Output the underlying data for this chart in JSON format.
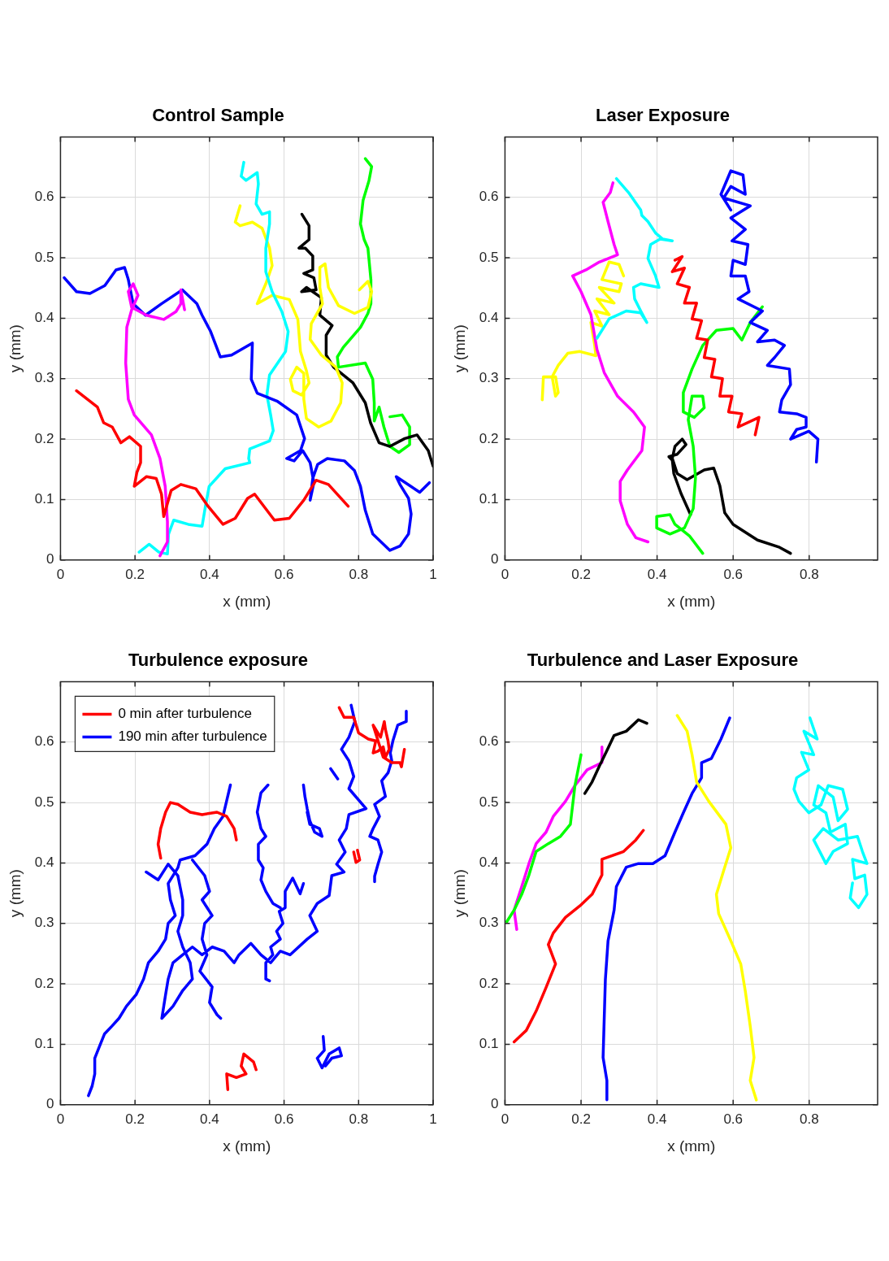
{
  "chart_data": [
    {
      "type": "line",
      "title": "Control Sample",
      "xlabel": "x (mm)",
      "ylabel": "y (mm)",
      "xlim": [
        0,
        1
      ],
      "ylim": [
        0,
        0.7
      ],
      "xticks": [
        0,
        0.2,
        0.4,
        0.6,
        0.8,
        1
      ],
      "yticks": [
        0,
        0.1,
        0.2,
        0.3,
        0.4,
        0.5,
        0.6
      ],
      "grid": true,
      "series": [
        {
          "color": "#ff0000",
          "x": [
            0.043,
            0.099,
            0.116,
            0.139,
            0.162,
            0.185,
            0.215,
            0.215,
            0.205,
            0.198,
            0.231,
            0.257,
            0.271,
            0.277,
            0.297,
            0.323,
            0.363,
            0.396,
            0.436,
            0.469,
            0.502,
            0.521,
            0.574,
            0.614,
            0.653,
            0.686,
            0.719,
            0.772
          ],
          "values": [
            0.28,
            0.253,
            0.227,
            0.22,
            0.194,
            0.204,
            0.188,
            0.161,
            0.145,
            0.122,
            0.138,
            0.135,
            0.109,
            0.072,
            0.115,
            0.125,
            0.118,
            0.089,
            0.059,
            0.069,
            0.102,
            0.109,
            0.066,
            0.069,
            0.099,
            0.132,
            0.125,
            0.089
          ]
        },
        {
          "color": "#ff00ff",
          "x": [
            0.267,
            0.287,
            0.287,
            0.281,
            0.267,
            0.244,
            0.198,
            0.182,
            0.175,
            0.178,
            0.191,
            0.208,
            0.195,
            0.182,
            0.191,
            0.231,
            0.277,
            0.31,
            0.323,
            0.323,
            0.333
          ],
          "values": [
            0.007,
            0.03,
            0.063,
            0.122,
            0.168,
            0.207,
            0.24,
            0.266,
            0.326,
            0.385,
            0.414,
            0.438,
            0.457,
            0.444,
            0.418,
            0.405,
            0.398,
            0.411,
            0.424,
            0.447,
            0.414
          ]
        },
        {
          "color": "#0000ff",
          "x": [
            0.01,
            0.043,
            0.079,
            0.119,
            0.149,
            0.172,
            0.182,
            0.195,
            0.228,
            0.271,
            0.327,
            0.366,
            0.38,
            0.403,
            0.429,
            0.459,
            0.515,
            0.512,
            0.528,
            0.581,
            0.634,
            0.655,
            0.644,
            0.607,
            0.627,
            0.65,
            0.67,
            0.68,
            0.67,
            0.677,
            0.69,
            0.716,
            0.762,
            0.789,
            0.805,
            0.818,
            0.838,
            0.884,
            0.911,
            0.934,
            0.941,
            0.934,
            0.911,
            0.901,
            0.964,
            0.99
          ],
          "values": [
            0.467,
            0.444,
            0.441,
            0.454,
            0.48,
            0.484,
            0.464,
            0.424,
            0.405,
            0.424,
            0.447,
            0.424,
            0.405,
            0.378,
            0.336,
            0.339,
            0.359,
            0.299,
            0.276,
            0.263,
            0.24,
            0.201,
            0.181,
            0.168,
            0.164,
            0.181,
            0.161,
            0.128,
            0.099,
            0.135,
            0.158,
            0.168,
            0.164,
            0.148,
            0.122,
            0.082,
            0.043,
            0.016,
            0.023,
            0.043,
            0.076,
            0.102,
            0.125,
            0.138,
            0.112,
            0.128
          ]
        },
        {
          "color": "#00ffff",
          "x": [
            0.492,
            0.485,
            0.498,
            0.528,
            0.531,
            0.525,
            0.541,
            0.561,
            0.561,
            0.551,
            0.551,
            0.568,
            0.594,
            0.611,
            0.604,
            0.561,
            0.554,
            0.564,
            0.571,
            0.561,
            0.508,
            0.505,
            0.508,
            0.442,
            0.399,
            0.389,
            0.38,
            0.343,
            0.304,
            0.29,
            0.287,
            0.264,
            0.238,
            0.211
          ],
          "values": [
            0.658,
            0.635,
            0.628,
            0.641,
            0.622,
            0.589,
            0.572,
            0.576,
            0.556,
            0.516,
            0.477,
            0.444,
            0.411,
            0.378,
            0.345,
            0.306,
            0.273,
            0.24,
            0.214,
            0.197,
            0.184,
            0.168,
            0.161,
            0.151,
            0.122,
            0.089,
            0.056,
            0.059,
            0.066,
            0.043,
            0.01,
            0.013,
            0.026,
            0.013
          ]
        },
        {
          "color": "#ffff00",
          "x": [
            0.482,
            0.469,
            0.482,
            0.515,
            0.541,
            0.561,
            0.568,
            0.551,
            0.528,
            0.568,
            0.614,
            0.637,
            0.644,
            0.66,
            0.667,
            0.647,
            0.624,
            0.617,
            0.634,
            0.653,
            0.653,
            0.66,
            0.693,
            0.726,
            0.752,
            0.756,
            0.739,
            0.7,
            0.67,
            0.673,
            0.703,
            0.696,
            0.696,
            0.71,
            0.719,
            0.746,
            0.789,
            0.825,
            0.835,
            0.825,
            0.802
          ],
          "values": [
            0.586,
            0.559,
            0.553,
            0.559,
            0.549,
            0.516,
            0.487,
            0.457,
            0.424,
            0.438,
            0.431,
            0.398,
            0.345,
            0.313,
            0.293,
            0.273,
            0.28,
            0.299,
            0.319,
            0.309,
            0.266,
            0.234,
            0.22,
            0.23,
            0.26,
            0.293,
            0.319,
            0.339,
            0.365,
            0.391,
            0.424,
            0.451,
            0.484,
            0.49,
            0.451,
            0.421,
            0.408,
            0.418,
            0.444,
            0.461,
            0.447
          ]
        },
        {
          "color": "#000000",
          "x": [
            0.648,
            0.667,
            0.667,
            0.64,
            0.657,
            0.677,
            0.677,
            0.653,
            0.68,
            0.686,
            0.647,
            0.66,
            0.7,
            0.696,
            0.729,
            0.713,
            0.713,
            0.733,
            0.785,
            0.818,
            0.832,
            0.855,
            0.884,
            0.924,
            0.957,
            0.987,
            1.0
          ],
          "values": [
            0.572,
            0.553,
            0.53,
            0.516,
            0.516,
            0.503,
            0.48,
            0.474,
            0.467,
            0.447,
            0.444,
            0.451,
            0.434,
            0.405,
            0.388,
            0.372,
            0.339,
            0.319,
            0.293,
            0.26,
            0.227,
            0.194,
            0.188,
            0.201,
            0.207,
            0.181,
            0.155
          ]
        },
        {
          "color": "#00ff00",
          "x": [
            0.818,
            0.835,
            0.828,
            0.812,
            0.805,
            0.815,
            0.825,
            0.833,
            0.833,
            0.825,
            0.805,
            0.759,
            0.743,
            0.746,
            0.818,
            0.838,
            0.842,
            0.842,
            0.855,
            0.868,
            0.884,
            0.908,
            0.937,
            0.937,
            0.917,
            0.884
          ],
          "values": [
            0.664,
            0.651,
            0.628,
            0.595,
            0.556,
            0.53,
            0.516,
            0.464,
            0.424,
            0.408,
            0.385,
            0.352,
            0.336,
            0.319,
            0.326,
            0.299,
            0.26,
            0.23,
            0.253,
            0.22,
            0.188,
            0.178,
            0.191,
            0.22,
            0.24,
            0.237
          ]
        }
      ]
    },
    {
      "type": "line",
      "title": "Laser Exposure",
      "xlabel": "x (mm)",
      "ylabel": "y (mm)",
      "xlim": [
        0,
        0.98
      ],
      "ylim": [
        0,
        0.7
      ],
      "xticks": [
        0,
        0.2,
        0.4,
        0.6,
        0.8
      ],
      "yticks": [
        0,
        0.1,
        0.2,
        0.3,
        0.4,
        0.5,
        0.6
      ],
      "grid": true,
      "series": [
        {
          "color": "#0000ff",
          "x": [
            0.819,
            0.823,
            0.799,
            0.751,
            0.767,
            0.792,
            0.792,
            0.767,
            0.722,
            0.728,
            0.751,
            0.748,
            0.69,
            0.709,
            0.735,
            0.709,
            0.664,
            0.69,
            0.645,
            0.677,
            0.613,
            0.642,
            0.632,
            0.594,
            0.6,
            0.632,
            0.639,
            0.597,
            0.632,
            0.594,
            0.645,
            0.575,
            0.594,
            0.632,
            0.626,
            0.594,
            0.568,
            0.594
          ],
          "values": [
            0.162,
            0.2,
            0.213,
            0.2,
            0.216,
            0.22,
            0.236,
            0.242,
            0.245,
            0.265,
            0.29,
            0.316,
            0.322,
            0.335,
            0.355,
            0.364,
            0.361,
            0.38,
            0.393,
            0.412,
            0.432,
            0.444,
            0.47,
            0.47,
            0.496,
            0.489,
            0.522,
            0.528,
            0.547,
            0.566,
            0.586,
            0.599,
            0.618,
            0.605,
            0.637,
            0.644,
            0.605,
            0.579
          ]
        },
        {
          "color": "#ff0000",
          "x": [
            0.447,
            0.466,
            0.44,
            0.472,
            0.453,
            0.485,
            0.472,
            0.504,
            0.492,
            0.517,
            0.504,
            0.533,
            0.524,
            0.552,
            0.543,
            0.572,
            0.565,
            0.597,
            0.588,
            0.623,
            0.613,
            0.668,
            0.658
          ],
          "values": [
            0.496,
            0.502,
            0.477,
            0.483,
            0.457,
            0.451,
            0.425,
            0.425,
            0.399,
            0.396,
            0.367,
            0.364,
            0.335,
            0.332,
            0.303,
            0.3,
            0.271,
            0.271,
            0.245,
            0.242,
            0.22,
            0.236,
            0.207
          ]
        },
        {
          "color": "#00ff00",
          "x": [
            0.677,
            0.645,
            0.623,
            0.6,
            0.556,
            0.52,
            0.492,
            0.469,
            0.469,
            0.498,
            0.524,
            0.52,
            0.492,
            0.482,
            0.495,
            0.501,
            0.495,
            0.472,
            0.434,
            0.399,
            0.399,
            0.434,
            0.447,
            0.485,
            0.52
          ],
          "values": [
            0.419,
            0.393,
            0.364,
            0.383,
            0.38,
            0.355,
            0.316,
            0.277,
            0.245,
            0.236,
            0.252,
            0.271,
            0.271,
            0.232,
            0.188,
            0.136,
            0.085,
            0.053,
            0.043,
            0.053,
            0.072,
            0.075,
            0.059,
            0.04,
            0.011
          ]
        },
        {
          "color": "#000000",
          "x": [
            0.751,
            0.722,
            0.664,
            0.6,
            0.578,
            0.565,
            0.549,
            0.524,
            0.479,
            0.453,
            0.44,
            0.447,
            0.466,
            0.476,
            0.453,
            0.431,
            0.44,
            0.444,
            0.463,
            0.488
          ],
          "values": [
            0.011,
            0.021,
            0.033,
            0.059,
            0.078,
            0.123,
            0.152,
            0.149,
            0.133,
            0.143,
            0.168,
            0.188,
            0.2,
            0.191,
            0.175,
            0.171,
            0.165,
            0.143,
            0.11,
            0.075
          ]
        },
        {
          "color": "#00ffff",
          "x": [
            0.293,
            0.325,
            0.357,
            0.36,
            0.376,
            0.396,
            0.415,
            0.44,
            0.408,
            0.383,
            0.376,
            0.396,
            0.405,
            0.357,
            0.338,
            0.341,
            0.357,
            0.373,
            0.357,
            0.319,
            0.274,
            0.242
          ],
          "values": [
            0.631,
            0.608,
            0.579,
            0.57,
            0.56,
            0.541,
            0.531,
            0.528,
            0.531,
            0.522,
            0.499,
            0.47,
            0.451,
            0.457,
            0.451,
            0.432,
            0.412,
            0.393,
            0.409,
            0.412,
            0.399,
            0.367
          ]
        },
        {
          "color": "#ff00ff",
          "x": [
            0.284,
            0.277,
            0.258,
            0.271,
            0.287,
            0.296,
            0.284,
            0.248,
            0.213,
            0.178,
            0.2,
            0.226,
            0.242,
            0.261,
            0.296,
            0.338,
            0.367,
            0.36,
            0.322,
            0.303,
            0.303,
            0.322,
            0.344,
            0.376
          ],
          "values": [
            0.624,
            0.608,
            0.592,
            0.56,
            0.522,
            0.505,
            0.502,
            0.493,
            0.48,
            0.47,
            0.444,
            0.406,
            0.348,
            0.31,
            0.271,
            0.245,
            0.22,
            0.181,
            0.149,
            0.13,
            0.098,
            0.059,
            0.037,
            0.03
          ]
        },
        {
          "color": "#ffff00",
          "x": [
            0.312,
            0.3,
            0.274,
            0.255,
            0.306,
            0.3,
            0.248,
            0.287,
            0.242,
            0.274,
            0.236,
            0.255,
            0.226,
            0.236,
            0.239,
            0.197,
            0.165,
            0.14,
            0.124,
            0.133,
            0.14,
            0.133,
            0.101,
            0.098
          ],
          "values": [
            0.47,
            0.489,
            0.493,
            0.464,
            0.457,
            0.444,
            0.451,
            0.425,
            0.432,
            0.406,
            0.412,
            0.387,
            0.393,
            0.355,
            0.338,
            0.345,
            0.342,
            0.322,
            0.303,
            0.271,
            0.277,
            0.303,
            0.303,
            0.265
          ]
        }
      ]
    },
    {
      "type": "line",
      "title": "Turbulence exposure",
      "xlabel": "x (mm)",
      "ylabel": "y (mm)",
      "xlim": [
        0,
        1
      ],
      "ylim": [
        0,
        0.7
      ],
      "xticks": [
        0,
        0.2,
        0.4,
        0.6,
        0.8,
        1
      ],
      "yticks": [
        0,
        0.1,
        0.2,
        0.3,
        0.4,
        0.5,
        0.6
      ],
      "grid": true,
      "legend": "top left",
      "series": [
        {
          "name": "0 min after turbulence",
          "color": "#ff0000",
          "x": [
            0.748,
            0.761,
            0.787,
            0.8,
            0.826,
            0.846,
            0.839,
            0.852,
            0.866,
            0.872,
            0.882,
            0.879,
            0.872,
            0.869,
            0.859,
            0.839,
            0.866,
            0.889,
            0.911,
            0.915,
            0.923,
            null,
            0.797,
            0.803,
            0.793,
            0.787,
            null,
            0.472,
            0.466,
            0.446,
            0.42,
            0.38,
            0.348,
            0.315,
            0.295,
            0.282,
            0.269,
            0.262,
            0.269,
            null,
            0.525,
            0.518,
            0.492,
            0.485,
            0.498,
            0.472,
            0.446,
            0.449
          ],
          "values": [
            0.657,
            0.641,
            0.641,
            0.615,
            0.605,
            0.602,
            0.582,
            0.585,
            0.592,
            0.575,
            0.588,
            0.602,
            0.621,
            0.634,
            0.608,
            0.628,
            0.575,
            0.566,
            0.566,
            0.559,
            0.588,
            null,
            0.421,
            0.405,
            0.401,
            0.418,
            null,
            0.438,
            0.457,
            0.477,
            0.484,
            0.48,
            0.484,
            0.497,
            0.5,
            0.484,
            0.457,
            0.431,
            0.408,
            null,
            0.058,
            0.071,
            0.084,
            0.064,
            0.051,
            0.045,
            0.051,
            0.025
          ]
        },
        {
          "name": "190 min after turbulence",
          "color": "#0000ff",
          "x": [
            0.928,
            0.928,
            0.905,
            0.892,
            0.885,
            0.889,
            0.879,
            0.862,
            0.872,
            0.843,
            0.856,
            0.839,
            0.83,
            0.852,
            0.862,
            0.852,
            0.843,
            0.843,
            null,
            0.78,
            0.79,
            0.774,
            0.754,
            0.774,
            0.787,
            0.774,
            0.82,
            0.774,
            0.767,
            0.748,
            0.764,
            0.741,
            0.761,
            0.728,
            0.721,
            0.689,
            0.669,
            0.689,
            0.662,
            0.616,
            0.59,
            0.564,
            0.538,
            0.511,
            0.479,
            0.466,
            0.439,
            0.407,
            0.38,
            0.354,
            0.328,
            0.302,
            0.289,
            0.282,
            0.272,
            null,
            0.725,
            0.744,
            null,
            0.652,
            0.656,
            0.662,
            0.669,
            0.682,
            0.702,
            0.695,
            0.669,
            0.662,
            null,
            0.652,
            0.643,
            0.623,
            0.603,
            0.603,
            0.587,
            0.597,
            0.58,
            0.59,
            0.564,
            0.57,
            0.551,
            0.551,
            0.561,
            null,
            0.557,
            0.538,
            0.528,
            0.538,
            0.551,
            0.531,
            0.531,
            0.544,
            0.538,
            0.551,
            0.57,
            0.59,
            null,
            0.705,
            0.708,
            0.689,
            0.702,
            0.721,
            0.748,
            0.754,
            0.728,
            0.711,
            null,
            0.456,
            0.446,
            0.436,
            0.413,
            0.393,
            0.361,
            0.321,
            0.315,
            0.289,
            0.295,
            0.308,
            0.289,
            0.282,
            0.262,
            0.236,
            0.223,
            0.203,
            0.177,
            0.157,
            0.138,
            0.118,
            0.105,
            0.092,
            0.092,
            0.085,
            0.075,
            null,
            0.354,
            0.387,
            0.4,
            0.38,
            0.407,
            0.387,
            0.38,
            0.393,
            0.374,
            0.407,
            0.4,
            0.42,
            0.43,
            null,
            0.23,
            0.262,
            0.289,
            0.315,
            0.328,
            0.328,
            0.315,
            0.328,
            0.348,
            0.354,
            0.328,
            0.302,
            0.272
          ],
          "values": [
            0.651,
            0.634,
            0.628,
            0.602,
            0.582,
            0.569,
            0.549,
            0.536,
            0.51,
            0.497,
            0.477,
            0.457,
            0.444,
            0.438,
            0.418,
            0.398,
            0.378,
            0.369,
            null,
            0.661,
            0.634,
            0.608,
            0.588,
            0.569,
            0.543,
            0.523,
            0.49,
            0.48,
            0.457,
            0.438,
            0.418,
            0.398,
            0.385,
            0.379,
            0.346,
            0.333,
            0.313,
            0.287,
            0.274,
            0.248,
            0.254,
            0.235,
            0.248,
            0.267,
            0.248,
            0.235,
            0.254,
            0.261,
            0.248,
            0.261,
            0.248,
            0.235,
            0.208,
            0.182,
            0.143,
            null,
            0.556,
            0.539,
            null,
            0.529,
            0.51,
            0.49,
            0.47,
            0.451,
            0.444,
            0.457,
            0.464,
            0.484,
            null,
            0.366,
            0.349,
            0.375,
            0.353,
            0.326,
            0.32,
            0.3,
            0.287,
            0.274,
            0.261,
            0.248,
            0.235,
            0.208,
            0.205,
            null,
            0.529,
            0.516,
            0.484,
            0.457,
            0.444,
            0.431,
            0.405,
            0.392,
            0.372,
            0.353,
            0.333,
            0.326,
            null,
            0.113,
            0.09,
            0.077,
            0.061,
            0.084,
            0.094,
            0.081,
            0.077,
            0.064,
            null,
            0.529,
            0.503,
            0.477,
            0.457,
            0.431,
            0.412,
            0.405,
            0.392,
            0.366,
            0.339,
            0.313,
            0.3,
            0.274,
            0.254,
            0.235,
            0.208,
            0.182,
            0.163,
            0.143,
            0.13,
            0.117,
            0.097,
            0.077,
            0.051,
            0.031,
            0.015,
            null,
            0.405,
            0.379,
            0.353,
            0.339,
            0.313,
            0.3,
            0.274,
            0.248,
            0.221,
            0.195,
            0.169,
            0.149,
            0.143,
            null,
            0.385,
            0.372,
            0.398,
            0.379,
            0.339,
            0.313,
            0.287,
            0.261,
            0.235,
            0.208,
            0.189,
            0.163,
            0.143
          ]
        }
      ]
    },
    {
      "type": "line",
      "title": "Turbulence and Laser Exposure",
      "xlabel": "x (mm)",
      "ylabel": "y (mm)",
      "xlim": [
        0,
        0.98
      ],
      "ylim": [
        0,
        0.7
      ],
      "xticks": [
        0,
        0.2,
        0.4,
        0.6,
        0.8
      ],
      "yticks": [
        0,
        0.1,
        0.2,
        0.3,
        0.4,
        0.5,
        0.6
      ],
      "grid": true,
      "series": [
        {
          "color": "#00ffff",
          "x": [
            0.802,
            0.821,
            0.786,
            0.812,
            0.78,
            0.799,
            0.767,
            0.76,
            0.773,
            0.799,
            0.831,
            0.85,
            0.888,
            0.901,
            0.876,
            0.863,
            0.824,
            0.812,
            0.844,
            0.856,
            0.895,
            0.901,
            0.863,
            0.844,
            0.812,
            0.837,
            0.876,
            0.927,
            0.94,
            0.952,
            0.914,
            0.92,
            0.946,
            0.952,
            0.93,
            0.908,
            0.914
          ],
          "values": [
            0.64,
            0.605,
            0.618,
            0.579,
            0.583,
            0.554,
            0.541,
            0.522,
            0.502,
            0.483,
            0.496,
            0.528,
            0.522,
            0.489,
            0.47,
            0.509,
            0.528,
            0.496,
            0.483,
            0.451,
            0.464,
            0.432,
            0.419,
            0.399,
            0.438,
            0.457,
            0.438,
            0.444,
            0.419,
            0.399,
            0.406,
            0.374,
            0.38,
            0.348,
            0.326,
            0.342,
            0.367
          ]
        },
        {
          "color": "#ffff00",
          "x": [
            0.453,
            0.479,
            0.492,
            0.504,
            0.536,
            0.581,
            0.594,
            0.575,
            0.556,
            0.562,
            0.594,
            0.62,
            0.632,
            0.645,
            0.655,
            0.645,
            0.661
          ],
          "values": [
            0.644,
            0.618,
            0.579,
            0.534,
            0.502,
            0.464,
            0.425,
            0.387,
            0.348,
            0.316,
            0.271,
            0.233,
            0.188,
            0.13,
            0.078,
            0.04,
            0.008
          ]
        },
        {
          "color": "#0000ff",
          "x": [
            0.591,
            0.568,
            0.543,
            0.517,
            0.517,
            0.492,
            0.469,
            0.447,
            0.421,
            0.389,
            0.351,
            0.319,
            0.293,
            0.287,
            0.271,
            0.264,
            0.261,
            0.258,
            0.268,
            0.268
          ],
          "values": [
            0.64,
            0.605,
            0.573,
            0.566,
            0.541,
            0.515,
            0.483,
            0.451,
            0.412,
            0.399,
            0.399,
            0.393,
            0.361,
            0.322,
            0.271,
            0.207,
            0.143,
            0.078,
            0.04,
            0.008
          ]
        },
        {
          "color": "#ff0000",
          "x": [
            0.364,
            0.344,
            0.312,
            0.255,
            0.255,
            0.229,
            0.197,
            0.159,
            0.127,
            0.114,
            0.133,
            0.108,
            0.082,
            0.056,
            0.024
          ],
          "values": [
            0.454,
            0.438,
            0.419,
            0.406,
            0.38,
            0.348,
            0.329,
            0.31,
            0.284,
            0.265,
            0.233,
            0.194,
            0.155,
            0.123,
            0.104
          ]
        },
        {
          "color": "#000000",
          "x": [
            0.373,
            0.351,
            0.319,
            0.287,
            0.268,
            0.248,
            0.229,
            0.21
          ],
          "values": [
            0.631,
            0.637,
            0.618,
            0.611,
            0.586,
            0.56,
            0.534,
            0.515
          ]
        },
        {
          "color": "#00ff00",
          "x": [
            0.2,
            0.184,
            0.172,
            0.146,
            0.114,
            0.082,
            0.063,
            0.044,
            0.024,
            0.005
          ],
          "values": [
            0.579,
            0.528,
            0.464,
            0.444,
            0.432,
            0.419,
            0.38,
            0.348,
            0.322,
            0.303
          ]
        },
        {
          "color": "#ff00ff",
          "x": [
            0.255,
            0.255,
            0.216,
            0.184,
            0.159,
            0.127,
            0.108,
            0.082,
            0.063,
            0.044,
            0.024,
            0.031
          ],
          "values": [
            0.592,
            0.566,
            0.554,
            0.528,
            0.502,
            0.477,
            0.451,
            0.432,
            0.399,
            0.361,
            0.322,
            0.29
          ]
        }
      ]
    }
  ]
}
